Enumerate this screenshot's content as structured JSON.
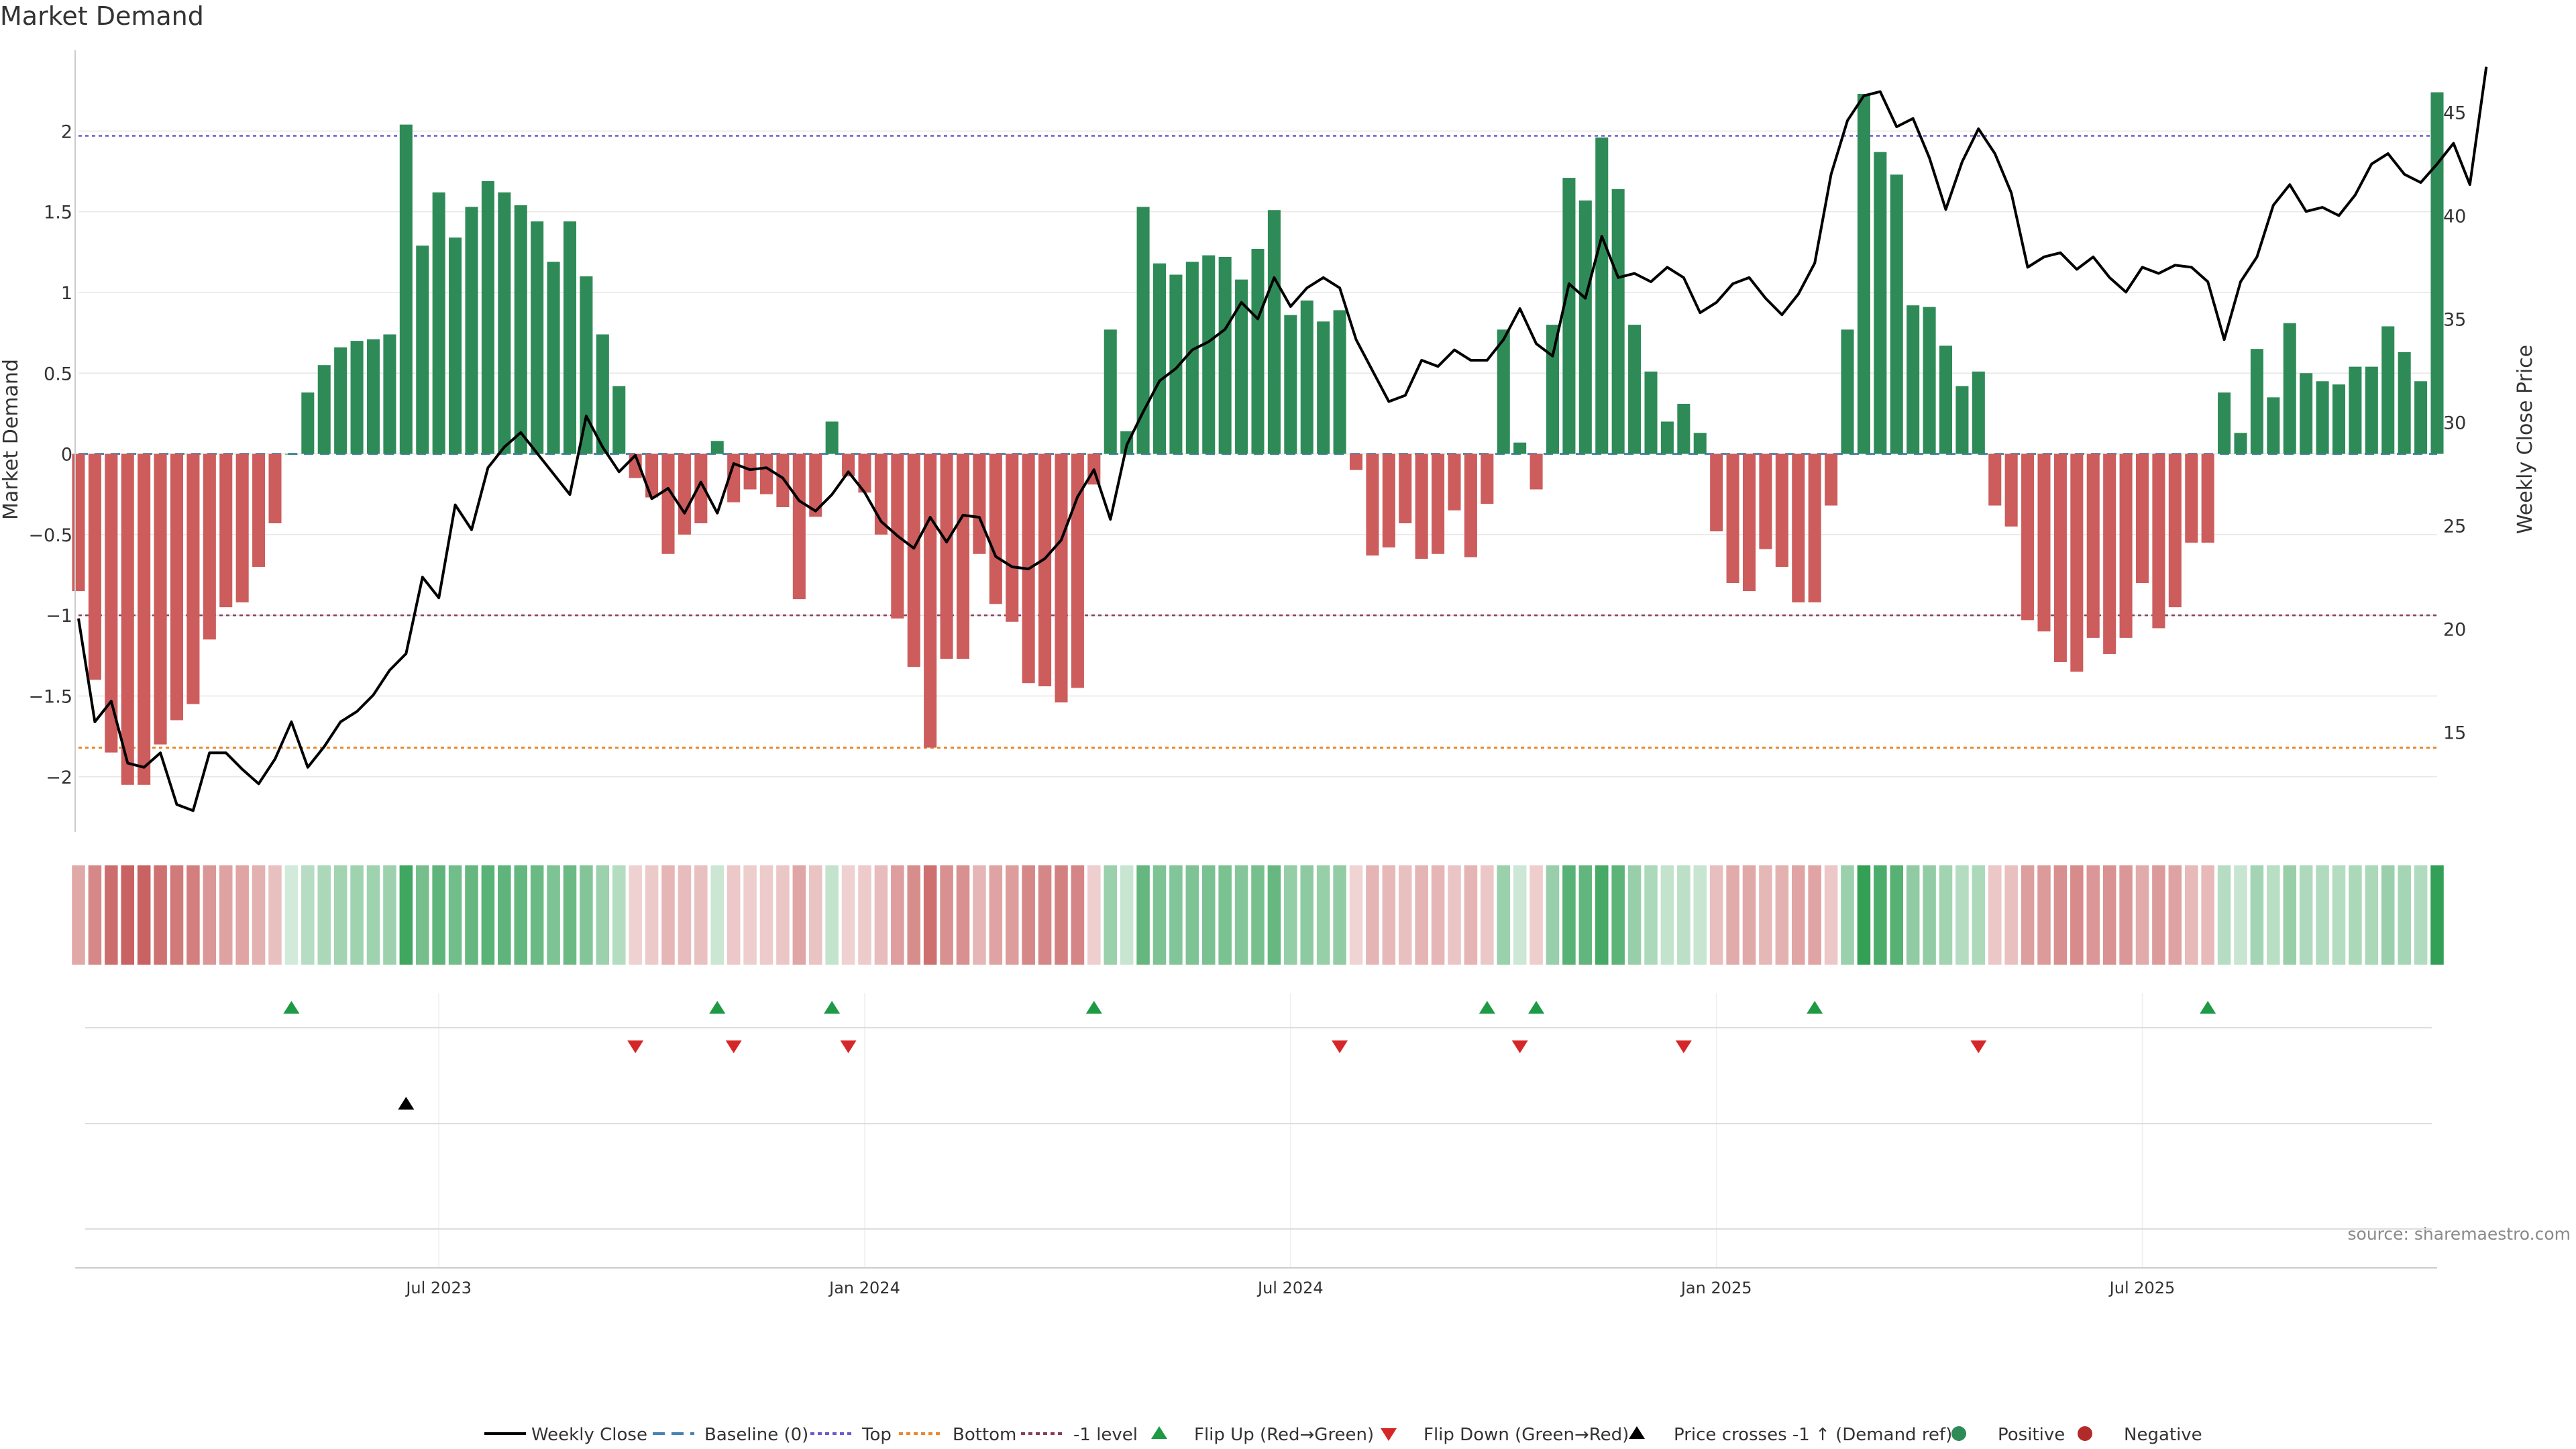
{
  "chart_data": {
    "type": "bar",
    "title": "Market Demand",
    "ylabel": "Market Demand",
    "y2label": "Weekly Close Price",
    "ylim": [
      -2.3,
      2.5
    ],
    "y2lim": [
      10.5,
      48
    ],
    "y_ticks": [
      -2,
      -1.5,
      -1,
      -0.5,
      0,
      0.5,
      1,
      1.5,
      2
    ],
    "y_tick_labels": [
      "−2",
      "−1.5",
      "−1",
      "−0.5",
      "0",
      "0.5",
      "1",
      "1.5",
      "2"
    ],
    "y2_ticks": [
      15,
      20,
      25,
      30,
      35,
      40,
      45
    ],
    "x_ticks": [
      {
        "label": "Jul 2023",
        "week": 22
      },
      {
        "label": "Jan 2024",
        "week": 48
      },
      {
        "label": "Jul 2024",
        "week": 74
      },
      {
        "label": "Jan 2025",
        "week": 100
      },
      {
        "label": "Jul 2025",
        "week": 126
      }
    ],
    "reference_lines": {
      "top": 1.97,
      "bottom": -1.82,
      "minus_one": -1.0,
      "baseline": 0
    },
    "demand": [
      -0.85,
      -1.4,
      -1.85,
      -2.05,
      -2.05,
      -1.8,
      -1.65,
      -1.55,
      -1.15,
      -0.95,
      -0.92,
      -0.7,
      -0.43,
      0,
      0.38,
      0.55,
      0.66,
      0.7,
      0.71,
      0.74,
      2.04,
      1.29,
      1.62,
      1.34,
      1.53,
      1.69,
      1.62,
      1.54,
      1.44,
      1.19,
      1.44,
      1.1,
      0.74,
      0.42,
      -0.15,
      -0.27,
      -0.62,
      -0.5,
      -0.43,
      0.08,
      -0.3,
      -0.22,
      -0.25,
      -0.33,
      -0.9,
      -0.39,
      0.2,
      -0.14,
      -0.24,
      -0.5,
      -1.02,
      -1.32,
      -1.82,
      -1.27,
      -1.27,
      -0.62,
      -0.93,
      -1.04,
      -1.42,
      -1.44,
      -1.54,
      -1.45,
      -0.19,
      0.77,
      0.14,
      1.53,
      1.18,
      1.11,
      1.19,
      1.23,
      1.22,
      1.08,
      1.27,
      1.51,
      0.86,
      0.95,
      0.82,
      0.89,
      -0.1,
      -0.63,
      -0.58,
      -0.43,
      -0.65,
      -0.62,
      -0.35,
      -0.64,
      -0.31,
      0.77,
      0.07,
      -0.22,
      0.8,
      1.71,
      1.57,
      1.96,
      1.64,
      0.8,
      0.51,
      0.2,
      0.31,
      0.13,
      -0.48,
      -0.8,
      -0.85,
      -0.59,
      -0.7,
      -0.92,
      -0.92,
      -0.32,
      0.77,
      2.23,
      1.87,
      1.73,
      0.92,
      0.91,
      0.67,
      0.42,
      0.51,
      -0.32,
      -0.45,
      -1.03,
      -1.1,
      -1.29,
      -1.35,
      -1.14,
      -1.24,
      -1.14,
      -0.8,
      -1.08,
      -0.95,
      -0.55,
      -0.55,
      0.38,
      0.13,
      0.65,
      0.35,
      0.81,
      0.5,
      0.45,
      0.43,
      0.54,
      0.54,
      0.79,
      0.63,
      0.45,
      2.24
    ],
    "weekly_close": [
      20.5,
      15.5,
      16.5,
      13.5,
      13.3,
      14.0,
      11.5,
      11.2,
      14.0,
      14.0,
      13.2,
      12.5,
      13.7,
      15.5,
      13.3,
      14.3,
      15.5,
      16.0,
      16.8,
      18.0,
      18.8,
      22.5,
      21.5,
      26.0,
      24.8,
      27.8,
      28.8,
      29.5,
      28.5,
      27.5,
      26.5,
      30.3,
      28.8,
      27.6,
      28.4,
      26.3,
      26.8,
      25.6,
      27.1,
      25.6,
      28.0,
      27.7,
      27.8,
      27.3,
      26.2,
      25.7,
      26.5,
      27.6,
      26.6,
      25.2,
      24.5,
      23.9,
      25.4,
      24.2,
      25.5,
      25.4,
      23.5,
      23.0,
      22.9,
      23.4,
      24.3,
      26.4,
      27.7,
      25.3,
      28.9,
      30.5,
      32.0,
      32.6,
      33.5,
      33.9,
      34.5,
      35.8,
      35.0,
      37.0,
      35.6,
      36.5,
      37.0,
      36.5,
      34.0,
      32.5,
      31.0,
      31.3,
      33.0,
      32.7,
      33.5,
      33.0,
      33.0,
      34.0,
      35.5,
      33.8,
      33.2,
      36.7,
      36.0,
      39.0,
      37.0,
      37.2,
      36.8,
      37.5,
      37.0,
      35.3,
      35.8,
      36.7,
      37.0,
      36.0,
      35.2,
      36.2,
      37.7,
      42.0,
      44.6,
      45.8,
      46.0,
      44.3,
      44.7,
      42.8,
      40.3,
      42.6,
      44.2,
      43.0,
      41.1,
      37.5,
      38.0,
      38.2,
      37.4,
      38.0,
      37.0,
      36.3,
      37.5,
      37.2,
      37.6,
      37.5,
      36.8,
      34.0,
      36.8,
      38.0,
      40.5,
      41.5,
      40.2,
      40.4,
      40.0,
      41.0,
      42.5,
      43.0,
      42.0,
      41.6,
      42.5,
      43.5,
      41.5,
      47.2
    ],
    "flip_up_weeks": [
      13,
      39,
      46,
      62,
      86,
      89,
      106,
      130
    ],
    "flip_down_weeks": [
      34,
      40,
      47,
      77,
      88,
      98,
      116
    ],
    "price_cross_weeks": [
      20
    ],
    "legend": [
      "Weekly Close",
      "Baseline (0)",
      "Top",
      "Bottom",
      "-1 level",
      "Flip Up (Red→Green)",
      "Flip Down (Green→Red)",
      "Price crosses -1 ↑ (Demand ref)",
      "Positive",
      "Negative"
    ],
    "legend_placement": "bottom-center",
    "source": "source: sharemaestro.com",
    "colors": {
      "positive": "#2e8b57",
      "negative": "#cd5c5c",
      "price": "#000000",
      "top": "#6a5acd",
      "bottom": "#e8892b",
      "minus_one": "#8b3a5c",
      "baseline": "#4682b4",
      "flip_up": "#1e9a44",
      "flip_down": "#d62728",
      "grid": "#e6e6e6"
    }
  }
}
